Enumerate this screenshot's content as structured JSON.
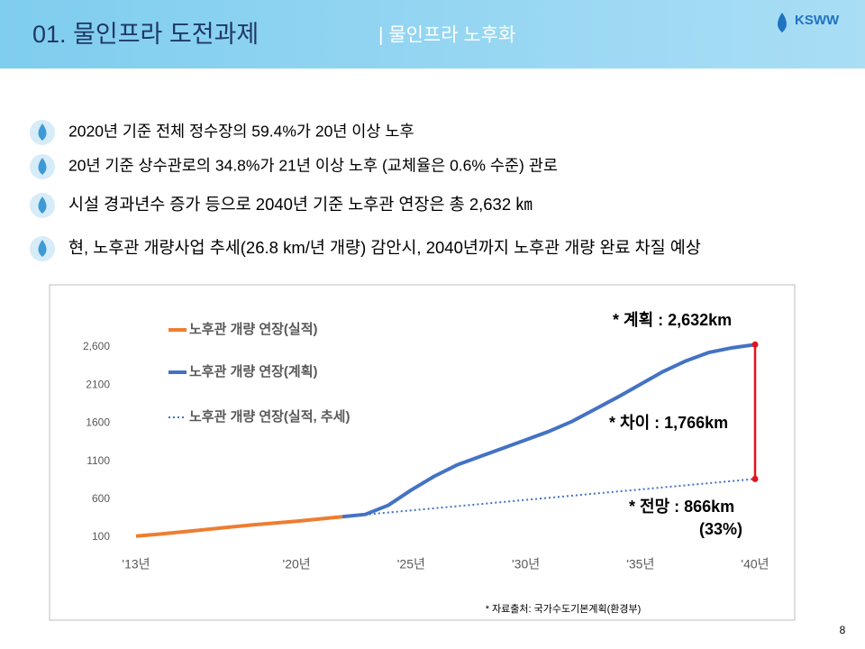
{
  "header": {
    "title": "01. 물인프라 도전과제",
    "subtitle": "| 물인프라 노후화",
    "logo": "KSWW"
  },
  "bullets": [
    "2020년 기준 전체 정수장의 59.4%가 20년 이상 노후",
    "20년 기준 상수관로의 34.8%가 21년 이상 노후 (교체율은 0.6% 수준)  관로",
    "시설 경과년수 증가 등으로 2040년 기준 노후관 연장은  총 2,632 ㎞",
    "현, 노후관 개량사업 추세(26.8 km/년 개량) 감안시, 2040년까지 노후관 개량 완료 차질 예상"
  ],
  "page_number": "8",
  "chart_data": {
    "type": "line",
    "x": [
      2013,
      2014,
      2015,
      2016,
      2017,
      2018,
      2019,
      2020,
      2021,
      2022,
      2023,
      2024,
      2025,
      2026,
      2027,
      2028,
      2029,
      2030,
      2031,
      2032,
      2033,
      2034,
      2035,
      2036,
      2037,
      2038,
      2039,
      2040
    ],
    "series": [
      {
        "name": "노후관 개량 연장(실적)",
        "color": "#ed7d31",
        "style": "solid",
        "values": [
          115,
          140,
          170,
          200,
          230,
          260,
          285,
          310,
          340,
          370,
          null,
          null,
          null,
          null,
          null,
          null,
          null,
          null,
          null,
          null,
          null,
          null,
          null,
          null,
          null,
          null,
          null,
          null
        ]
      },
      {
        "name": "노후관 개량 연장(계획)",
        "color": "#4472c4",
        "style": "solid",
        "values": [
          null,
          null,
          null,
          null,
          null,
          null,
          null,
          null,
          null,
          370,
          400,
          520,
          720,
          900,
          1050,
          1160,
          1270,
          1380,
          1490,
          1620,
          1780,
          1940,
          2110,
          2280,
          2420,
          2530,
          2590,
          2632
        ]
      },
      {
        "name": "노후관 개량 연장(실적, 추세)",
        "color": "#4472c4",
        "style": "dotted",
        "values": [
          115,
          140,
          170,
          200,
          230,
          260,
          285,
          310,
          340,
          370,
          398,
          425,
          453,
          480,
          508,
          535,
          563,
          591,
          618,
          646,
          673,
          701,
          728,
          756,
          783,
          811,
          838,
          866
        ]
      }
    ],
    "xlim": [
      2013,
      2040
    ],
    "xticks": [
      {
        "value": 2013,
        "label": "'13년"
      },
      {
        "value": 2020,
        "label": "'20년"
      },
      {
        "value": 2025,
        "label": "'25년"
      },
      {
        "value": 2030,
        "label": "'30년"
      },
      {
        "value": 2035,
        "label": "'35년"
      },
      {
        "value": 2040,
        "label": "'40년"
      }
    ],
    "ylim": [
      100,
      2700
    ],
    "yticks": [
      100,
      600,
      1100,
      1600,
      2100,
      {
        "value": 2600,
        "label": "2,600"
      }
    ],
    "yticks_labels_fix": null,
    "annotations": [
      "* 계획 : 2,632km",
      "* 차이 : 1,766km",
      "* 전망 : 866km",
      "(33%)"
    ],
    "gap_color": "#e0141e",
    "source": "* 자료출처: 국가수도기본계획(환경부)"
  }
}
